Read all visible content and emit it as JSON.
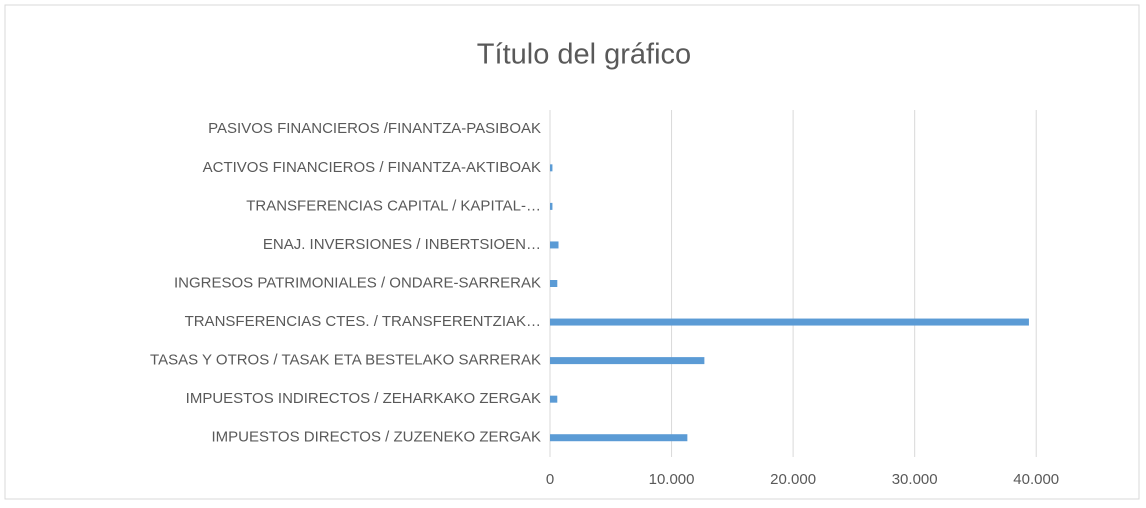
{
  "chart_data": {
    "type": "hbar",
    "title": "Título del gráfico",
    "categories": [
      "IMPUESTOS DIRECTOS / ZUZENEKO ZERGAK",
      "IMPUESTOS INDIRECTOS / ZEHARKAKO ZERGAK",
      "TASAS Y OTROS / TASAK ETA BESTELAKO SARRERAK",
      "TRANSFERENCIAS CTES. / TRANSFERENTZIAK…",
      "INGRESOS PATRIMONIALES / ONDARE-SARRERAK",
      "ENAJ. INVERSIONES / INBERTSIOEN…",
      "TRANSFERENCIAS CAPITAL / KAPITAL-…",
      "ACTIVOS FINANCIEROS / FINANTZA-AKTIBOAK",
      "PASIVOS FINANCIEROS /FINANTZA-PASIBOAK"
    ],
    "values": [
      11300,
      600,
      12700,
      39400,
      600,
      700,
      200,
      200,
      0
    ],
    "color": "#5b9bd5",
    "xlim": [
      0,
      45000
    ],
    "xticks": [
      0,
      {
        "value": 10000,
        "label": "10.000"
      },
      {
        "value": 20000,
        "label": "20.000"
      },
      {
        "value": 30000,
        "label": "30.000"
      },
      {
        "value": 40000,
        "label": "40.000"
      }
    ],
    "grid": true
  }
}
